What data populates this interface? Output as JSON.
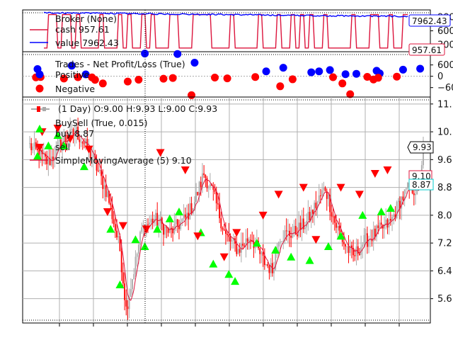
{
  "chart_data": [
    {
      "type": "line",
      "panel": "broker",
      "legend": {
        "title": "Broker (None)",
        "cash_label": "cash 957.61",
        "value_label": "value 7962.43"
      },
      "yticks": [
        300,
        600,
        900
      ],
      "ylim": [
        150,
        1050
      ],
      "last_value_tag": "7962.43",
      "last_cash_tag": "957.61",
      "colors": {
        "cash": "#dc143c",
        "value": "#0000ff"
      }
    },
    {
      "type": "scatter",
      "panel": "trades",
      "legend": {
        "title": "Trades - Net Profit/Loss (True)",
        "positive_label": "Positive",
        "negative_label": "Negative"
      },
      "yticks": [
        600,
        0,
        -600
      ],
      "tick_labels": [
        "600",
        "0",
        "−60"
      ],
      "ylim": [
        -1100,
        1300
      ],
      "positive": [
        [
          5,
          380
        ],
        [
          27,
          560
        ],
        [
          36,
          100
        ],
        [
          74,
          1200
        ],
        [
          95,
          1180
        ],
        [
          106,
          720
        ],
        [
          152,
          260
        ],
        [
          163,
          450
        ],
        [
          181,
          210
        ],
        [
          186,
          260
        ],
        [
          193,
          330
        ],
        [
          203,
          110
        ],
        [
          210,
          130
        ],
        [
          223,
          290
        ],
        [
          225,
          150
        ],
        [
          240,
          350
        ],
        [
          251,
          400
        ]
      ],
      "negative": [
        [
          4,
          -60
        ],
        [
          7,
          -40
        ],
        [
          22,
          -120
        ],
        [
          31,
          -50
        ],
        [
          40,
          -60
        ],
        [
          42,
          -190
        ],
        [
          47,
          -380
        ],
        [
          63,
          -280
        ],
        [
          70,
          -180
        ],
        [
          86,
          -130
        ],
        [
          92,
          -90
        ],
        [
          104,
          -1000
        ],
        [
          119,
          -70
        ],
        [
          127,
          -110
        ],
        [
          145,
          -40
        ],
        [
          161,
          -530
        ],
        [
          169,
          -160
        ],
        [
          195,
          -50
        ],
        [
          201,
          -380
        ],
        [
          206,
          -950
        ],
        [
          217,
          -30
        ],
        [
          221,
          -170
        ],
        [
          224,
          -80
        ],
        [
          236,
          -20
        ]
      ],
      "colors": {
        "positive": "#0000ff",
        "negative": "#ff0000"
      }
    },
    {
      "type": "candlestick",
      "panel": "price",
      "legend": {
        "ohlc_label": "(1 Day) O:9.00 H:9.93 L:9.00 C:9.93",
        "buysell_label": "BuySell (True, 0.015)",
        "buy_label": "buy 8.87",
        "sell_label": "sell",
        "sma_label": "SimpleMovingAverage (5) 9.10"
      },
      "yticks": [
        5.6,
        6.4,
        7.2,
        8.0,
        8.8,
        9.6,
        10.4,
        11.2
      ],
      "tick_labels": [
        "5.6",
        "6.4",
        "7.2",
        "8.0",
        "8.8",
        "9.6",
        "10.",
        "11."
      ],
      "ylim": [
        4.9,
        11.4
      ],
      "num_bars": 254,
      "close_keypoints": [
        [
          0,
          10.0
        ],
        [
          12,
          9.5
        ],
        [
          20,
          10.1
        ],
        [
          30,
          10.4
        ],
        [
          40,
          9.7
        ],
        [
          50,
          8.6
        ],
        [
          58,
          7.0
        ],
        [
          62,
          5.3
        ],
        [
          66,
          6.2
        ],
        [
          72,
          7.6
        ],
        [
          80,
          7.9
        ],
        [
          90,
          7.5
        ],
        [
          100,
          7.9
        ],
        [
          106,
          8.4
        ],
        [
          112,
          9.2
        ],
        [
          118,
          8.6
        ],
        [
          126,
          7.4
        ],
        [
          134,
          7.0
        ],
        [
          142,
          7.4
        ],
        [
          150,
          6.7
        ],
        [
          156,
          6.4
        ],
        [
          160,
          7.4
        ],
        [
          170,
          7.5
        ],
        [
          178,
          7.8
        ],
        [
          184,
          8.3
        ],
        [
          190,
          8.8
        ],
        [
          196,
          7.8
        ],
        [
          202,
          7.2
        ],
        [
          208,
          6.8
        ],
        [
          214,
          7.2
        ],
        [
          220,
          7.4
        ],
        [
          226,
          7.6
        ],
        [
          232,
          7.8
        ],
        [
          238,
          8.4
        ],
        [
          244,
          8.8
        ],
        [
          250,
          8.7
        ],
        [
          253,
          9.93
        ]
      ],
      "sma_period": 5,
      "buy_signals": [
        [
          5,
          9.7
        ],
        [
          12,
          10.0
        ],
        [
          18,
          10.3
        ],
        [
          22,
          10.0
        ],
        [
          35,
          9.4
        ],
        [
          52,
          7.6
        ],
        [
          58,
          6.0
        ],
        [
          68,
          7.3
        ],
        [
          74,
          7.1
        ],
        [
          82,
          7.6
        ],
        [
          90,
          7.9
        ],
        [
          96,
          8.1
        ],
        [
          110,
          7.5
        ],
        [
          118,
          6.6
        ],
        [
          128,
          6.3
        ],
        [
          132,
          6.1
        ],
        [
          146,
          7.2
        ],
        [
          158,
          7.0
        ],
        [
          168,
          6.8
        ],
        [
          180,
          6.7
        ],
        [
          192,
          7.1
        ],
        [
          200,
          7.4
        ],
        [
          214,
          8.0
        ],
        [
          226,
          8.1
        ],
        [
          232,
          8.2
        ]
      ],
      "sell_signals": [
        [
          8,
          10.4
        ],
        [
          18,
          10.5
        ],
        [
          26,
          10.2
        ],
        [
          38,
          9.9
        ],
        [
          50,
          8.1
        ],
        [
          60,
          7.7
        ],
        [
          75,
          7.6
        ],
        [
          84,
          9.8
        ],
        [
          100,
          9.3
        ],
        [
          108,
          7.4
        ],
        [
          125,
          6.8
        ],
        [
          133,
          7.5
        ],
        [
          150,
          8.0
        ],
        [
          160,
          8.6
        ],
        [
          176,
          8.8
        ],
        [
          184,
          7.3
        ],
        [
          200,
          8.8
        ],
        [
          212,
          8.6
        ],
        [
          222,
          9.2
        ],
        [
          230,
          9.3
        ]
      ],
      "last_price_tag": "9.93",
      "sma_tag": "9.10",
      "buy_tag": "8.87",
      "colors": {
        "up": "#aaaaaa",
        "down": "#ff0000",
        "sma": "#dc143c",
        "buy": "#00ff00",
        "sell": "#ff0000"
      }
    }
  ]
}
